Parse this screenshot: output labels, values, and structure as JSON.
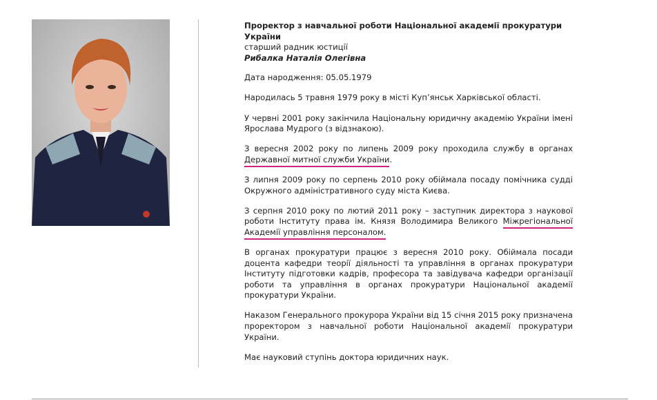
{
  "header": {
    "title": "Проректор з навчальної роботи Національної академії прокуратури України",
    "rank": "старший радник юстиції",
    "name": "Рибалка Наталія Олегівна"
  },
  "highlight_color": "#d0237f",
  "paragraphs": [
    {
      "text": "Дата народження: 05.05.1979"
    },
    {
      "text": "Народилась 5 травня 1979 року в місті Куп’янськ Харківської області."
    },
    {
      "text": "У червні 2001 року закінчила Національну юридичну академію України імені Ярослава Мудрого (з відзнакою)."
    },
    {
      "before": "З вересня 2002 року по липень 2009 року проходила службу в органах ",
      "highlight": "Державної митної служби України",
      "after": "."
    },
    {
      "text": "З липня 2009 року по серпень 2010 року обіймала посаду помічника судді Окружного адміністративного суду міста Києва."
    },
    {
      "before": "З серпня 2010 року по лютий 2011 року – заступник директора з наукової роботи Інституту права ім. Князя Володимира Великого ",
      "highlight": "Міжрегіональної Академії управління персоналом.",
      "after": ""
    },
    {
      "text": "В органах прокуратури працює з вересня 2010 року. Обіймала посади доцента кафедри теорії діяльності та управління в органах прокуратури Інституту підготовки кадрів, професора та завідувача кафедри організації роботи та управління в органах прокуратури Національної академії прокуратури України."
    },
    {
      "text": "Наказом Генерального прокурора України від 15 січня 2015 року призначена проректором з навчальної роботи Національної академії прокуратури України."
    },
    {
      "text": "Має науковий ступінь доктора юридичних наук."
    }
  ]
}
